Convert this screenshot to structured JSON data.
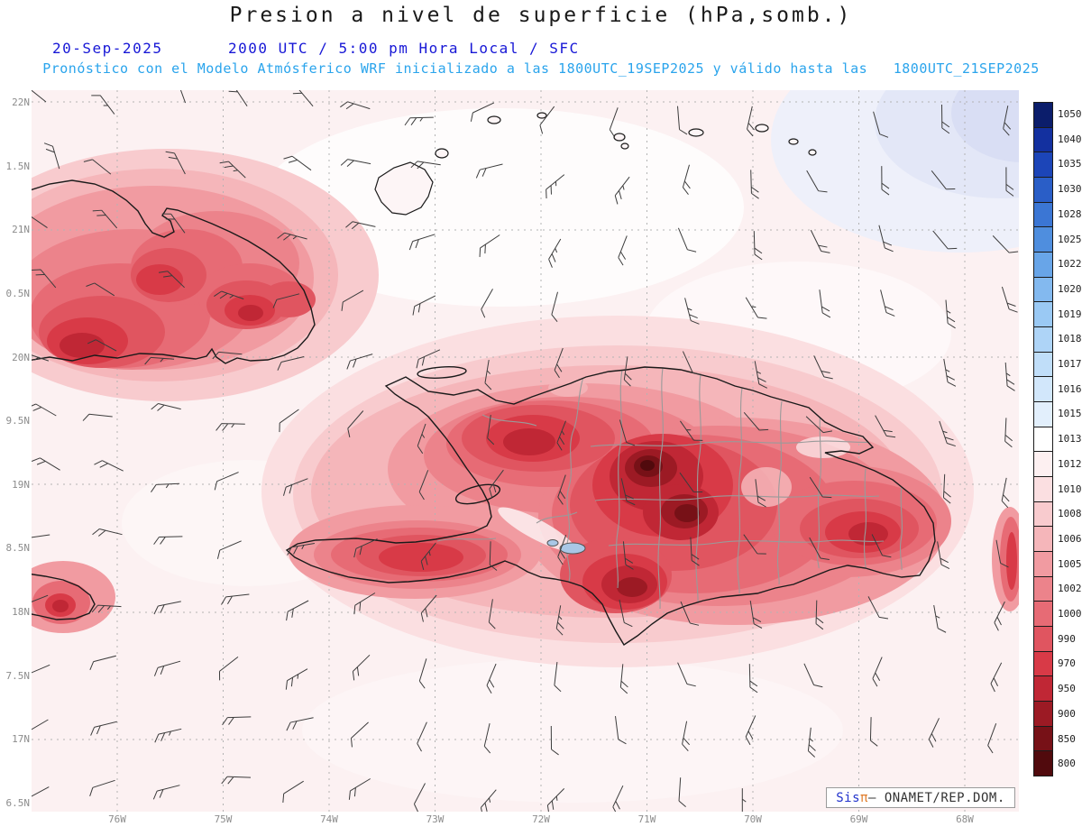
{
  "header": {
    "title": "Presion a nivel de superficie (hPa,somb.)",
    "date": "20-Sep-2025",
    "time_line": "2000 UTC / 5:00 pm Hora Local / SFC",
    "forecast_line": "Pronóstico con el Modelo Atmósferico WRF inicializado a las 1800UTC_19SEP2025 y válido hasta las   1800UTC_21SEP2025"
  },
  "colors": {
    "title": "#1a1a1a",
    "datetime": "#1717d6",
    "forecast": "#2aa4ec",
    "axis_labels": "#8c8c8c",
    "credit_sis": "#2233cc",
    "credit_pi": "#e07b28",
    "credit_text": "#333333"
  },
  "map": {
    "lat_labels": [
      "22N",
      "1.5N",
      "21N",
      "0.5N",
      "20N",
      "9.5N",
      "19N",
      "8.5N",
      "18N",
      "7.5N",
      "17N",
      "6.5N"
    ],
    "lon_labels": [
      "76W",
      "75W",
      "74W",
      "73W",
      "72W",
      "71W",
      "70W",
      "69W",
      "68W"
    ]
  },
  "colorbar": {
    "values": [
      "1050",
      "1040",
      "1035",
      "1030",
      "1028",
      "1025",
      "1022",
      "1020",
      "1019",
      "1018",
      "1017",
      "1016",
      "1015",
      "1013",
      "1012",
      "1010",
      "1008",
      "1006",
      "1005",
      "1002",
      "1000",
      "990",
      "970",
      "950",
      "900",
      "850",
      "800"
    ],
    "colors": [
      "#0b1d6b",
      "#13309f",
      "#1c45b8",
      "#2a5ec7",
      "#3b76d4",
      "#4f8ede",
      "#68a5e8",
      "#83b9ef",
      "#9ac9f4",
      "#aed4f7",
      "#c0def9",
      "#d2e7fb",
      "#e2effc",
      "#ffffff",
      "#fdf0f1",
      "#fbdfe1",
      "#f8cbce",
      "#f5b6ba",
      "#f19ba1",
      "#ec838b",
      "#e76b75",
      "#e05560",
      "#d83a47",
      "#c02735",
      "#9c1a24",
      "#771117",
      "#510a0d"
    ]
  },
  "credit": {
    "sis": "Sis",
    "pi": "π",
    "rest": "– ONAMET/REP.DOM."
  }
}
